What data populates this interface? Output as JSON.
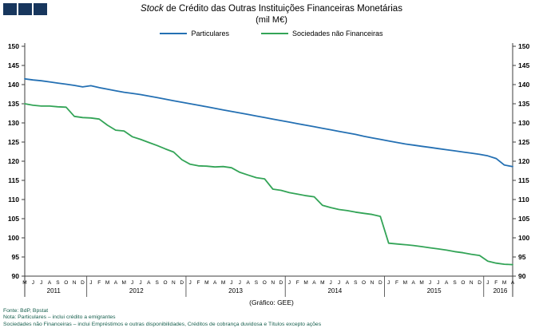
{
  "logo": {
    "color": "#17365D",
    "square_count": 3
  },
  "title": {
    "emphasis": "Stock",
    "rest": " de Crédito das Outras Instituições Financeiras Monetárias",
    "subtitle": "(mil M€)"
  },
  "legend": [
    {
      "label": "Particulares",
      "color": "#2470B3"
    },
    {
      "label": "Sociedades não Financeiras",
      "color": "#33A457"
    }
  ],
  "chart_data": {
    "type": "line",
    "title": "Stock de Crédito das Outras Instituições Financeiras Monetárias (mil M€)",
    "ylabel": "",
    "xlabel": "",
    "ylim": [
      90,
      150
    ],
    "ytick_step": 5,
    "grid": false,
    "legend_position": "top",
    "x_axis": {
      "year_groups": [
        {
          "year": "2011",
          "months": [
            "M",
            "J",
            "J",
            "A",
            "S",
            "O",
            "N",
            "D"
          ]
        },
        {
          "year": "2012",
          "months": [
            "J",
            "F",
            "M",
            "A",
            "M",
            "J",
            "J",
            "A",
            "S",
            "O",
            "N",
            "D"
          ]
        },
        {
          "year": "2013",
          "months": [
            "J",
            "F",
            "M",
            "A",
            "M",
            "J",
            "J",
            "A",
            "S",
            "O",
            "N",
            "D"
          ]
        },
        {
          "year": "2014",
          "months": [
            "J",
            "F",
            "M",
            "A",
            "M",
            "J",
            "J",
            "A",
            "S",
            "O",
            "N",
            "D"
          ]
        },
        {
          "year": "2015",
          "months": [
            "J",
            "F",
            "M",
            "A",
            "M",
            "J",
            "J",
            "A",
            "S",
            "O",
            "N",
            "D"
          ]
        },
        {
          "year": "2016",
          "months": [
            "J",
            "F",
            "M",
            "A"
          ]
        }
      ]
    },
    "series": [
      {
        "name": "Particulares",
        "color": "#2470B3",
        "values": [
          141.5,
          141.2,
          141.0,
          140.7,
          140.4,
          140.1,
          139.8,
          139.4,
          139.7,
          139.2,
          138.8,
          138.4,
          138.0,
          137.7,
          137.4,
          137.0,
          136.6,
          136.2,
          135.8,
          135.4,
          135.0,
          134.6,
          134.2,
          133.8,
          133.4,
          133.0,
          132.6,
          132.2,
          131.8,
          131.4,
          131.0,
          130.6,
          130.2,
          129.8,
          129.4,
          129.0,
          128.6,
          128.2,
          127.8,
          127.4,
          127.0,
          126.5,
          126.1,
          125.7,
          125.3,
          124.9,
          124.5,
          124.2,
          123.9,
          123.6,
          123.3,
          123.0,
          122.7,
          122.4,
          122.1,
          121.8,
          121.4,
          120.7,
          119.0,
          118.6
        ]
      },
      {
        "name": "Sociedades não Financeiras",
        "color": "#33A457",
        "values": [
          135.0,
          134.6,
          134.4,
          134.4,
          134.2,
          134.1,
          131.7,
          131.4,
          131.3,
          131.0,
          129.4,
          128.1,
          127.9,
          126.4,
          125.7,
          124.9,
          124.1,
          123.2,
          122.4,
          120.4,
          119.2,
          118.8,
          118.7,
          118.5,
          118.6,
          118.3,
          117.1,
          116.4,
          115.7,
          115.4,
          112.7,
          112.4,
          111.8,
          111.4,
          111.0,
          110.7,
          108.5,
          107.9,
          107.4,
          107.1,
          106.7,
          106.4,
          106.1,
          105.6,
          98.6,
          98.4,
          98.2,
          98.0,
          97.7,
          97.4,
          97.1,
          96.8,
          96.4,
          96.1,
          95.7,
          95.4,
          93.9,
          93.4,
          93.1,
          93.0
        ]
      }
    ]
  },
  "footer": {
    "credit": "(Gráfico: GEE)",
    "lines": [
      "Fonte: BdP, Bpstat",
      "Nota: Particulares – inclui crédito a emigrantes",
      "Sociedades não Financeiras – inclui Empréstimos e outras disponibilidades, Créditos de cobrança duvidosa e Títulos excepto ações"
    ]
  }
}
